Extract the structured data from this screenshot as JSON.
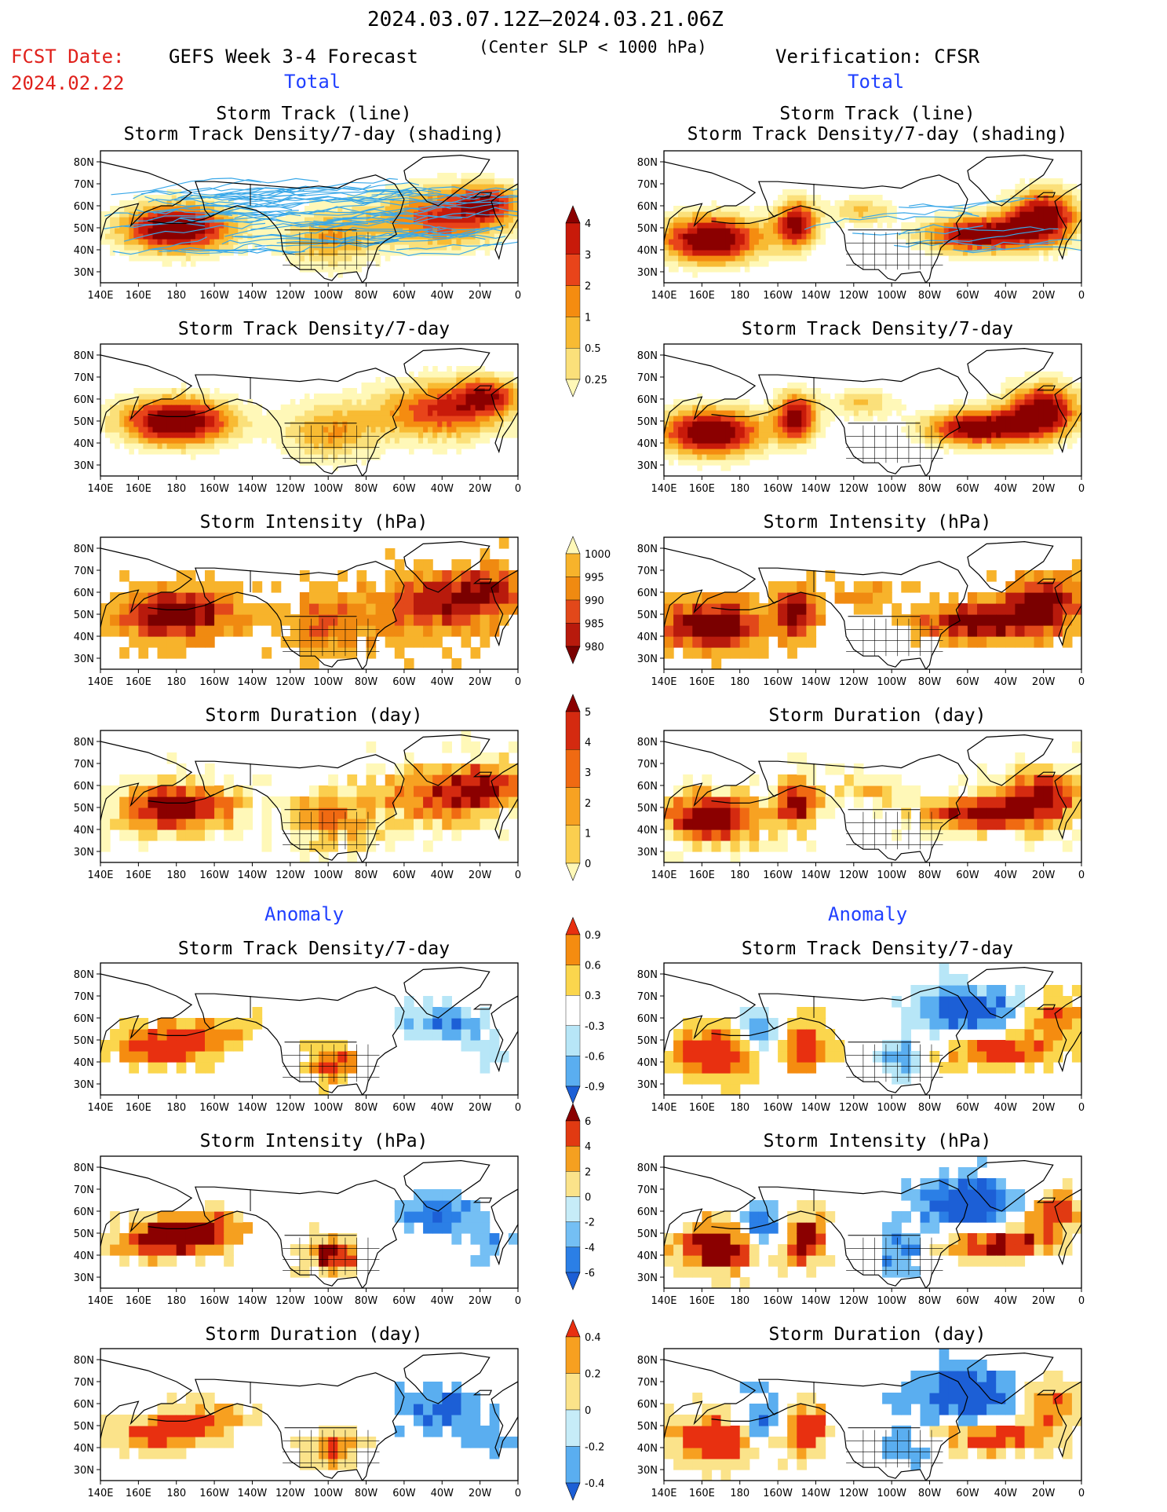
{
  "header": {
    "date_range": "2024.03.07.12Z–2024.03.21.06Z",
    "subtitle": "(Center SLP < 1000 hPa)",
    "fcst_label": "FCST Date:",
    "fcst_date": "2024.02.22",
    "left_title": "GEFS Week 3-4 Forecast",
    "right_title": "Verification: CFSR",
    "total_label": "Total",
    "anomaly_label": "Anomaly"
  },
  "colors": {
    "accent_red": "#e0201b",
    "accent_blue": "#2040ff",
    "track_line": "#3aa8e8"
  },
  "panel_titles": {
    "track_line": "Storm Track (line)",
    "track_shading": "Storm Track Density/7-day (shading)",
    "density": "Storm Track Density/7-day",
    "intensity": "Storm Intensity (hPa)",
    "duration": "Storm Duration (day)"
  },
  "axes": {
    "lat_ticks": [
      "80N",
      "70N",
      "60N",
      "50N",
      "40N",
      "30N"
    ],
    "lon_ticks": [
      "140E",
      "160E",
      "180",
      "160W",
      "140W",
      "120W",
      "100W",
      "80W",
      "60W",
      "40W",
      "20W",
      "0"
    ]
  },
  "chart_data": [
    {
      "type": "heatmap",
      "column": "forecast",
      "section": "total",
      "title": "Storm Track Density/7-day (shading)",
      "colorbar": "density"
    },
    {
      "type": "heatmap",
      "column": "forecast",
      "section": "total",
      "title": "Storm Track Density/7-day",
      "colorbar": "density"
    },
    {
      "type": "heatmap",
      "column": "forecast",
      "section": "total",
      "title": "Storm Intensity (hPa)",
      "colorbar": "intensity"
    },
    {
      "type": "heatmap",
      "column": "forecast",
      "section": "total",
      "title": "Storm Duration (day)",
      "colorbar": "duration"
    },
    {
      "type": "heatmap",
      "column": "forecast",
      "section": "anomaly",
      "title": "Storm Track Density/7-day",
      "colorbar": "density_anom"
    },
    {
      "type": "heatmap",
      "column": "forecast",
      "section": "anomaly",
      "title": "Storm Intensity (hPa)",
      "colorbar": "intensity_anom"
    },
    {
      "type": "heatmap",
      "column": "forecast",
      "section": "anomaly",
      "title": "Storm Duration (day)",
      "colorbar": "duration_anom"
    },
    {
      "type": "heatmap",
      "column": "verification",
      "section": "total",
      "title": "Storm Track Density/7-day (shading)",
      "colorbar": "density"
    },
    {
      "type": "heatmap",
      "column": "verification",
      "section": "total",
      "title": "Storm Track Density/7-day",
      "colorbar": "density"
    },
    {
      "type": "heatmap",
      "column": "verification",
      "section": "total",
      "title": "Storm Intensity (hPa)",
      "colorbar": "intensity"
    },
    {
      "type": "heatmap",
      "column": "verification",
      "section": "total",
      "title": "Storm Duration (day)",
      "colorbar": "duration"
    },
    {
      "type": "heatmap",
      "column": "verification",
      "section": "anomaly",
      "title": "Storm Track Density/7-day",
      "colorbar": "density_anom"
    },
    {
      "type": "heatmap",
      "column": "verification",
      "section": "anomaly",
      "title": "Storm Intensity (hPa)",
      "colorbar": "intensity_anom"
    },
    {
      "type": "heatmap",
      "column": "verification",
      "section": "anomaly",
      "title": "Storm Duration (day)",
      "colorbar": "duration_anom"
    }
  ],
  "colorbars": {
    "density": {
      "labels": [
        "4",
        "3",
        "2",
        "1",
        "0.5",
        "0.25"
      ],
      "colors": [
        "#8b0000",
        "#c81a0a",
        "#e8441a",
        "#f58c10",
        "#f8bb33",
        "#fbe07a",
        "#fff8b8"
      ]
    },
    "intensity": {
      "labels": [
        "1000",
        "995",
        "990",
        "985",
        "980"
      ],
      "colors": [
        "#fff8b8",
        "#f7b32b",
        "#f08a11",
        "#e2481a",
        "#b81a0c",
        "#7a0000"
      ]
    },
    "duration": {
      "labels": [
        "5",
        "4",
        "3",
        "2",
        "1",
        "0"
      ],
      "colors": [
        "#8b0000",
        "#d42a10",
        "#f06a12",
        "#f7a222",
        "#fbcf4f",
        "#fff8b8"
      ]
    },
    "density_anom": {
      "labels": [
        "0.9",
        "0.6",
        "0.3",
        "-0.3",
        "-0.6",
        "-0.9"
      ],
      "colors": [
        "#e83010",
        "#f58c10",
        "#fbd64d",
        "#ffffff",
        "#b7e6f7",
        "#5aaef0",
        "#1c5fd6"
      ]
    },
    "intensity_anom": {
      "labels": [
        "6",
        "4",
        "2",
        "0",
        "-2",
        "-4",
        "-6"
      ],
      "colors": [
        "#8b0000",
        "#e13a12",
        "#f5a020",
        "#fbe38a",
        "#c6ecf8",
        "#74bff4",
        "#2b7fe6",
        "#1c5fd6"
      ]
    },
    "duration_anom": {
      "labels": [
        "0.4",
        "0.2",
        "0",
        "-0.2",
        "-0.4"
      ],
      "colors": [
        "#e83010",
        "#f7a020",
        "#fbe38a",
        "#c6ecf8",
        "#5aaef0",
        "#1c5fd6"
      ]
    }
  }
}
